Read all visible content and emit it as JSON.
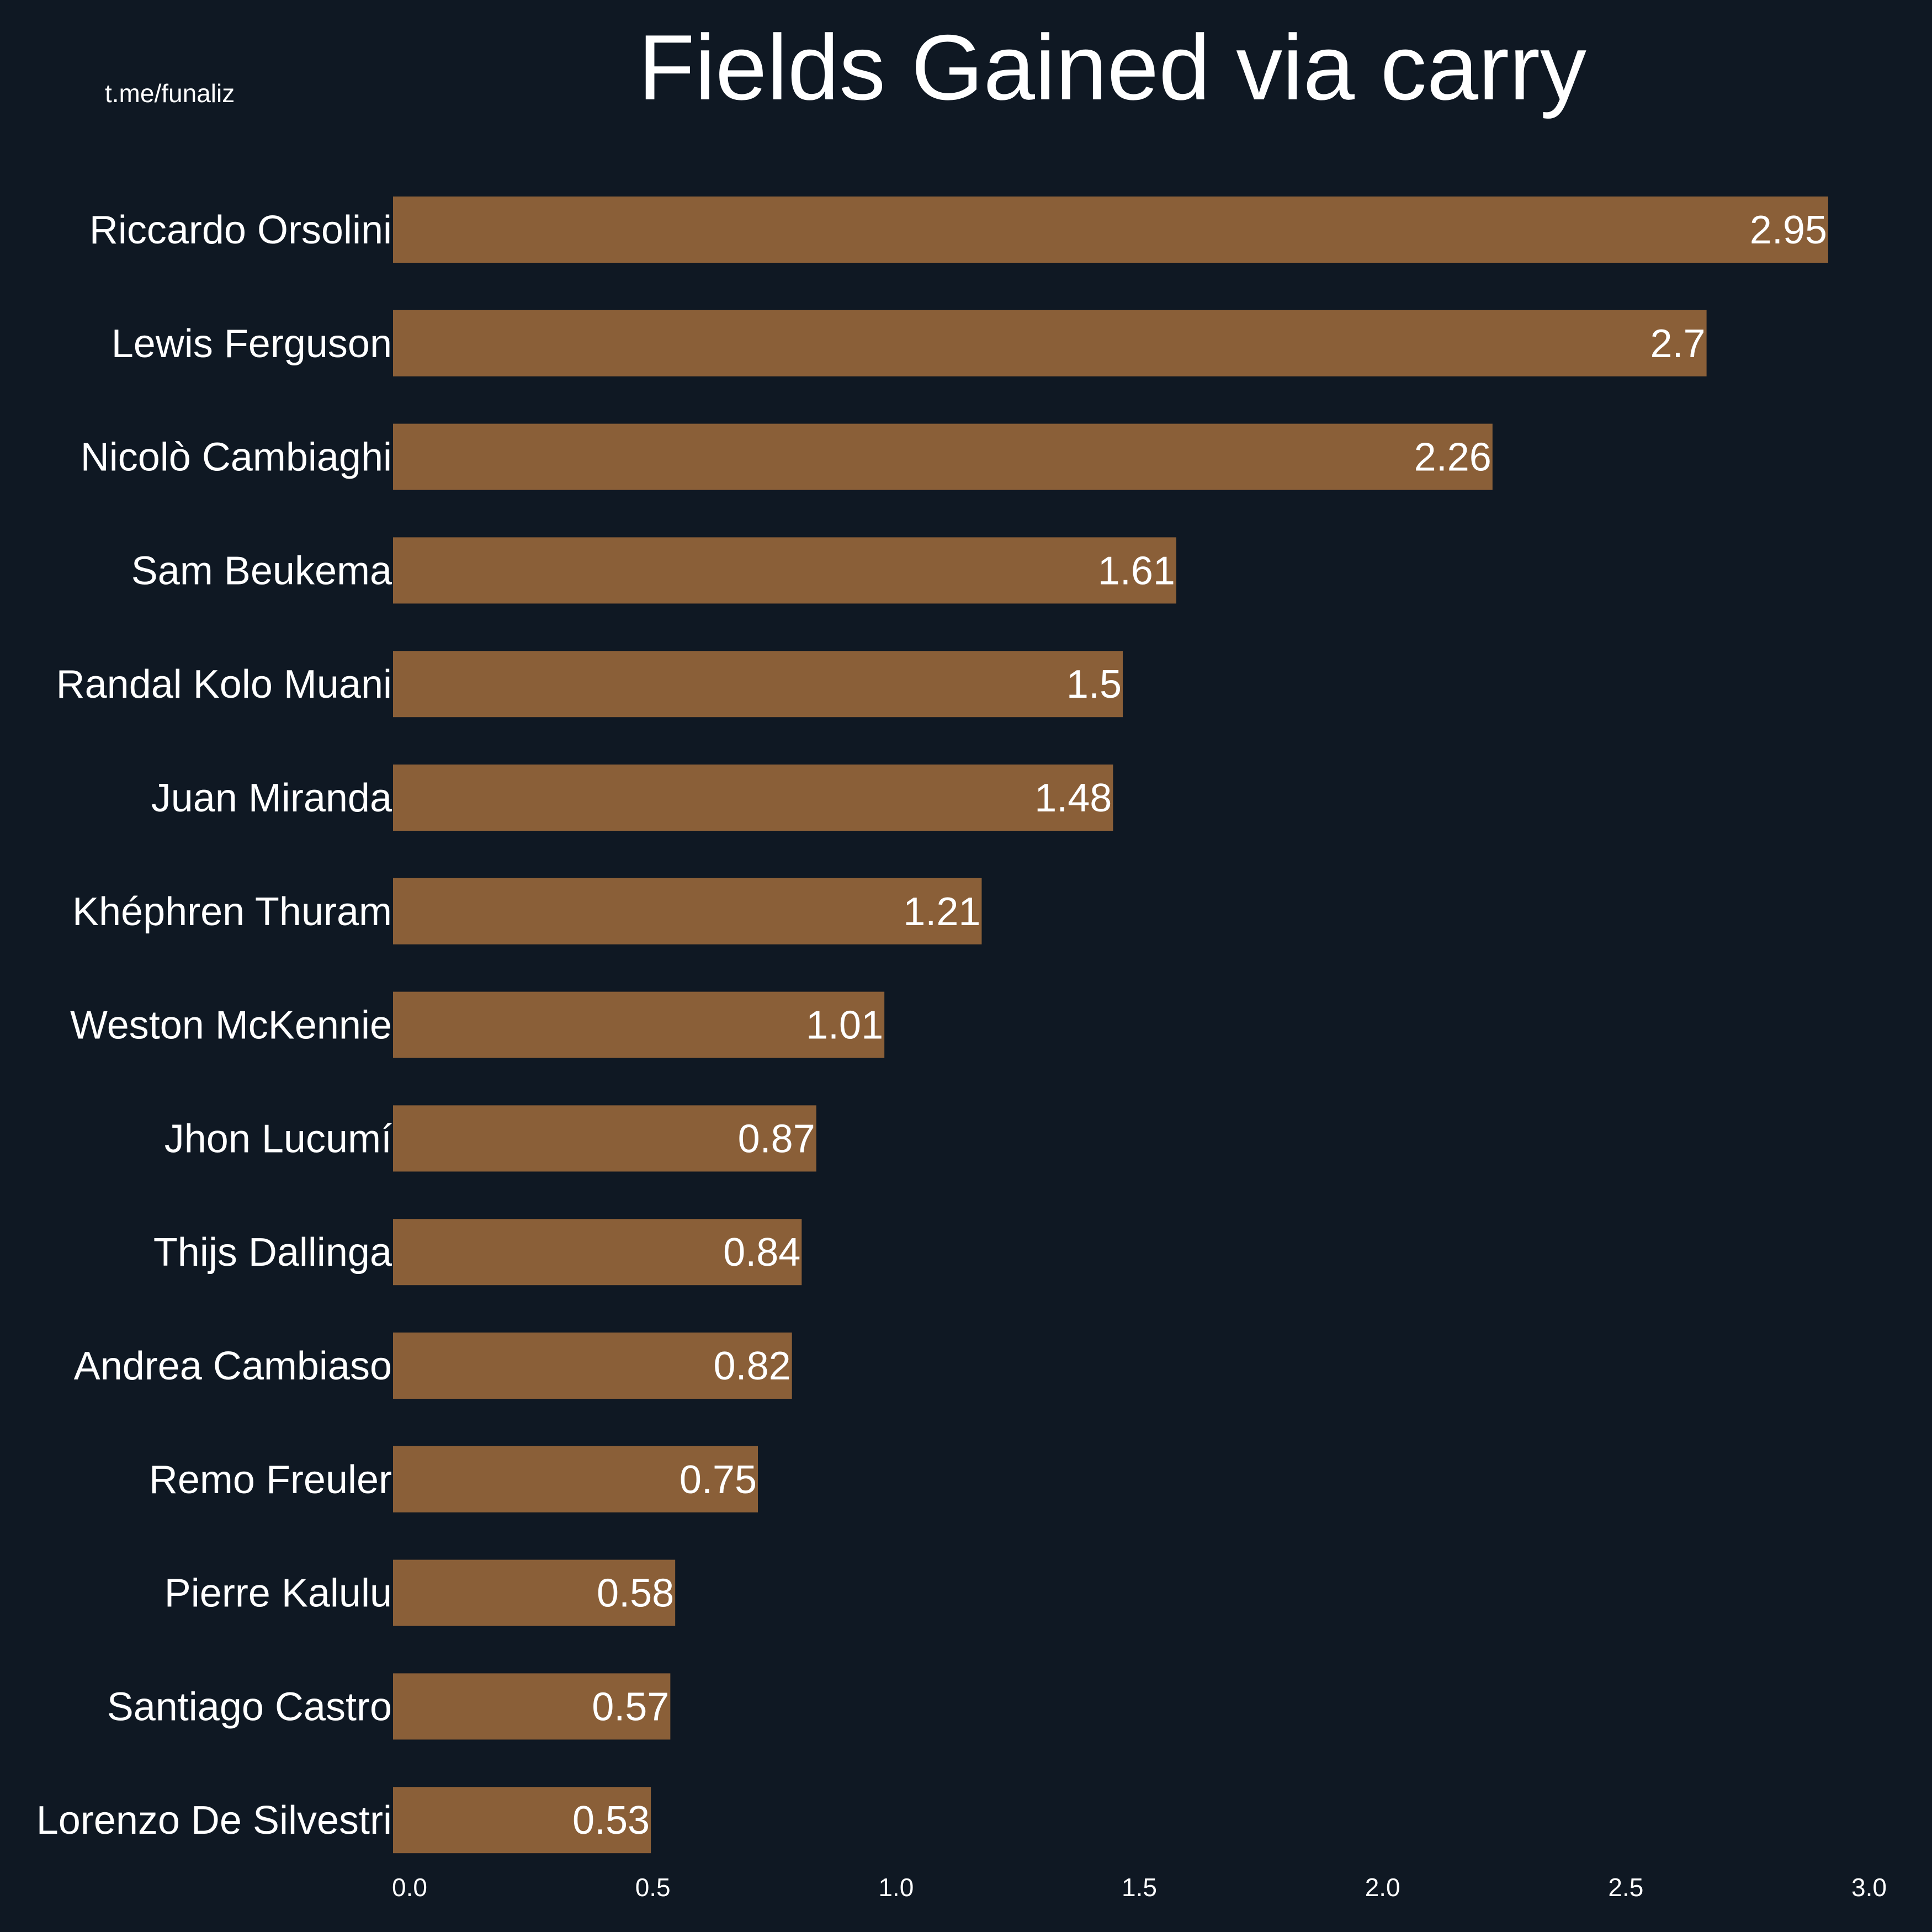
{
  "watermark": "t.me/funaliz",
  "colors": {
    "background": "#0f1823",
    "bar": "#8a5f38",
    "text": "#ffffff"
  },
  "chart_data": {
    "type": "bar",
    "orientation": "horizontal",
    "title": "Fields Gained via carry",
    "xlabel": "",
    "ylabel": "",
    "xlim": [
      0,
      3.0
    ],
    "x_ticks": [
      "0.0",
      "0.5",
      "1.0",
      "1.5",
      "2.0",
      "2.5",
      "3.0"
    ],
    "grid": false,
    "categories": [
      "Riccardo Orsolini",
      "Lewis Ferguson",
      "Nicolò Cambiaghi",
      "Sam Beukema",
      "Randal Kolo Muani",
      "Juan Miranda",
      "Khéphren Thuram",
      "Weston McKennie",
      "Jhon Lucumí",
      "Thijs Dallinga",
      "Andrea Cambiaso",
      "Remo Freuler",
      "Pierre Kalulu",
      "Santiago Castro",
      "Lorenzo De Silvestri"
    ],
    "values": [
      2.95,
      2.7,
      2.26,
      1.61,
      1.5,
      1.48,
      1.21,
      1.01,
      0.87,
      0.84,
      0.82,
      0.75,
      0.58,
      0.57,
      0.53
    ],
    "value_labels": [
      "2.95",
      "2.7",
      "2.26",
      "1.61",
      "1.5",
      "1.48",
      "1.21",
      "1.01",
      "0.87",
      "0.84",
      "0.82",
      "0.75",
      "0.58",
      "0.57",
      "0.53"
    ]
  }
}
